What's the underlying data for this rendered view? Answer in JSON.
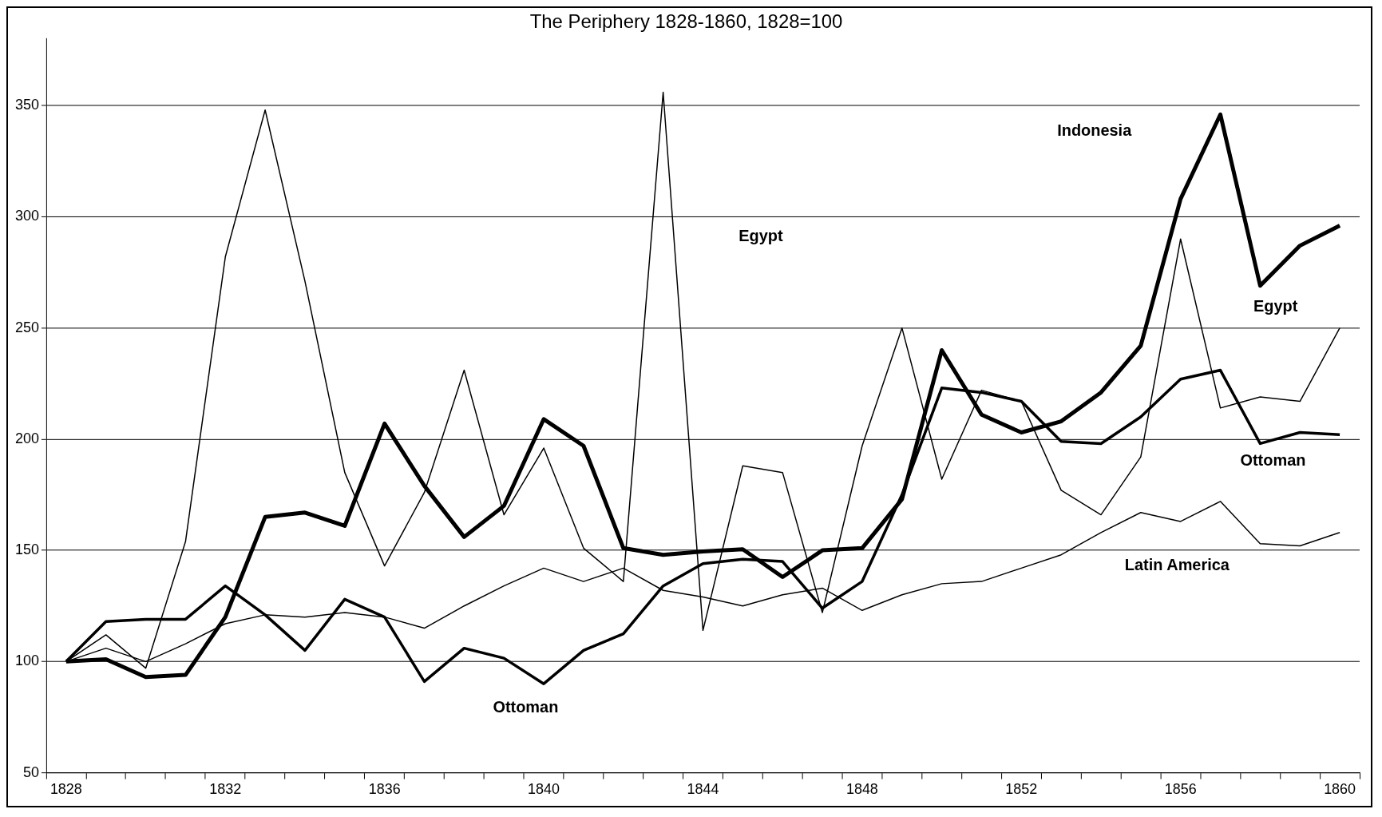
{
  "chart_data": {
    "type": "line",
    "title": "The Periphery 1828-1860, 1828=100",
    "categories": [
      "1828",
      null,
      null,
      null,
      "1832",
      null,
      null,
      null,
      "1836",
      null,
      null,
      null,
      "1840",
      null,
      null,
      null,
      "1844",
      null,
      null,
      null,
      "1848",
      null,
      null,
      null,
      "1852",
      null,
      null,
      null,
      "1856",
      null,
      null,
      null,
      "1860"
    ],
    "series": [
      {
        "color": "#000000",
        "values": [
          100,
          101,
          93,
          94,
          120,
          165,
          167,
          161,
          207,
          179,
          156,
          170,
          209,
          197,
          151,
          148,
          149.5,
          150.5,
          138,
          150,
          151,
          173,
          240,
          211,
          203,
          208,
          221,
          242,
          308,
          346,
          269,
          287,
          296
        ]
      },
      {
        "color": "#000000",
        "values": [
          100,
          118,
          119,
          119,
          134,
          121,
          105,
          128,
          120,
          91,
          106,
          101.5,
          90,
          105,
          112.5,
          134,
          144,
          146,
          145,
          124,
          136,
          175,
          223,
          221,
          217,
          199,
          198,
          210,
          227,
          231,
          198,
          203,
          202
        ]
      },
      {
        "color": "#000000",
        "values": [
          100,
          112,
          97,
          154,
          282,
          348,
          271,
          185,
          143,
          176,
          231,
          166,
          196,
          151,
          136,
          356,
          114,
          188,
          185,
          122,
          197,
          250,
          182,
          222,
          217,
          177,
          166,
          192,
          290,
          214,
          219,
          217,
          250
        ]
      },
      {
        "color": "#000000",
        "values": [
          100,
          106,
          100,
          108,
          117,
          121,
          120,
          122,
          120,
          115,
          125,
          134,
          142,
          136,
          142,
          132,
          129,
          125,
          130,
          133,
          123,
          130,
          135,
          136,
          142,
          148,
          158,
          167,
          163,
          172,
          153,
          152,
          158
        ]
      }
    ],
    "ylim": [
      50,
      380
    ],
    "yticks": [
      50,
      100,
      150,
      200,
      250,
      300,
      350
    ],
    "grid": "y",
    "legend": false,
    "marker": "none",
    "line_style": "solid",
    "annotations": [
      "Indonesia",
      "Egypt",
      "Egypt",
      "Ottoman",
      "Ottoman",
      "Latin America"
    ]
  }
}
